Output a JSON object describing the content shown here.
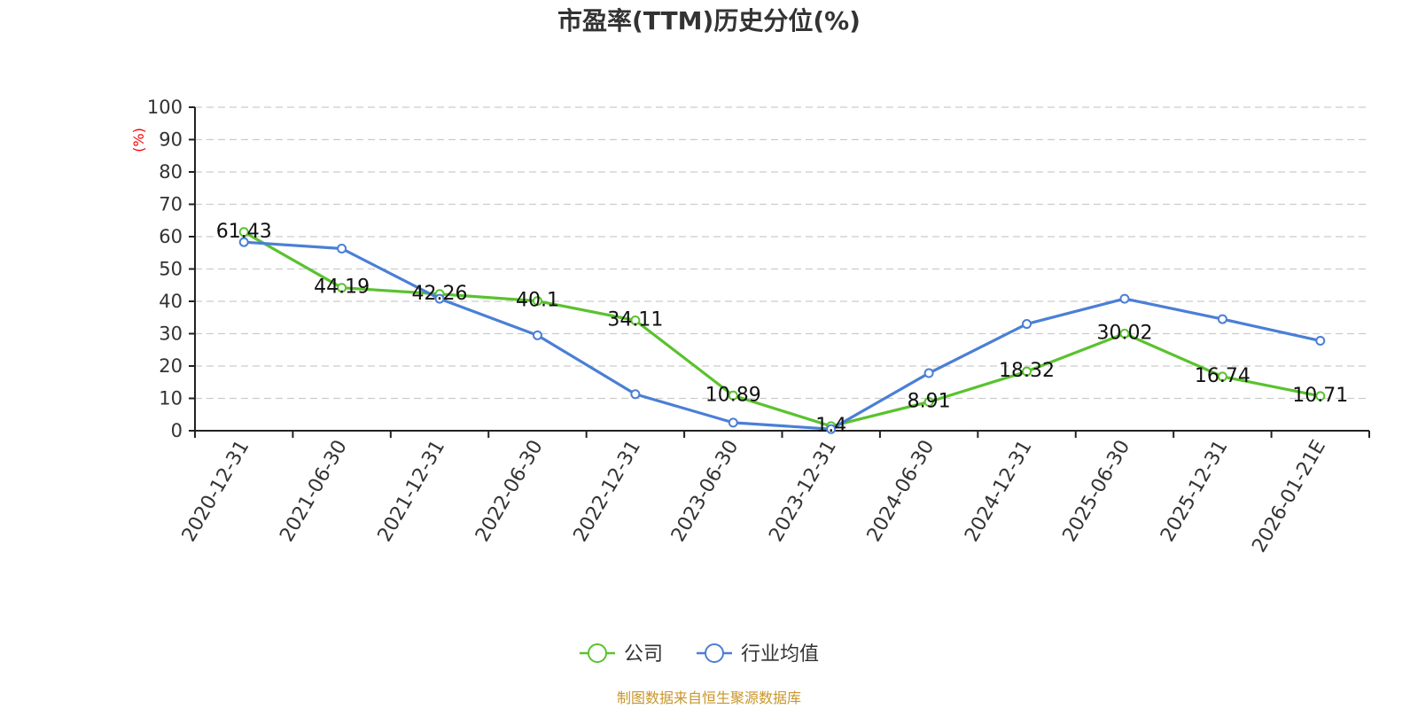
{
  "chart_data": {
    "type": "line",
    "title": "市盈率(TTM)历史分位(%)",
    "ylabel": "(%)",
    "xlabel": "",
    "ylim": [
      0,
      100
    ],
    "yticks": [
      0,
      10,
      20,
      30,
      40,
      50,
      60,
      70,
      80,
      90,
      100
    ],
    "grid": true,
    "legend_position": "bottom-center",
    "categories": [
      "2020-12-31",
      "2021-06-30",
      "2021-12-31",
      "2022-06-30",
      "2022-12-31",
      "2023-06-30",
      "2023-12-31",
      "2024-06-30",
      "2024-12-31",
      "2025-06-30",
      "2025-12-31",
      "2026-01-21E"
    ],
    "series": [
      {
        "name": "公司",
        "color": "#5ac22e",
        "values": [
          61.43,
          44.19,
          42.26,
          40.1,
          34.11,
          10.89,
          1.4,
          8.91,
          18.32,
          30.02,
          16.74,
          10.71
        ],
        "labels": [
          "61.43",
          "44.19",
          "42.26",
          "40.1",
          "34.11",
          "10.89",
          "1.4",
          "8.91",
          "18.32",
          "30.02",
          "16.74",
          "10.71"
        ]
      },
      {
        "name": "行业均值",
        "color": "#4a7fd6",
        "values": [
          58.3,
          56.3,
          40.8,
          29.5,
          11.3,
          2.5,
          0.5,
          17.8,
          33.0,
          40.8,
          34.5,
          27.8
        ]
      }
    ]
  },
  "source_note": "制图数据来自恒生聚源数据库"
}
